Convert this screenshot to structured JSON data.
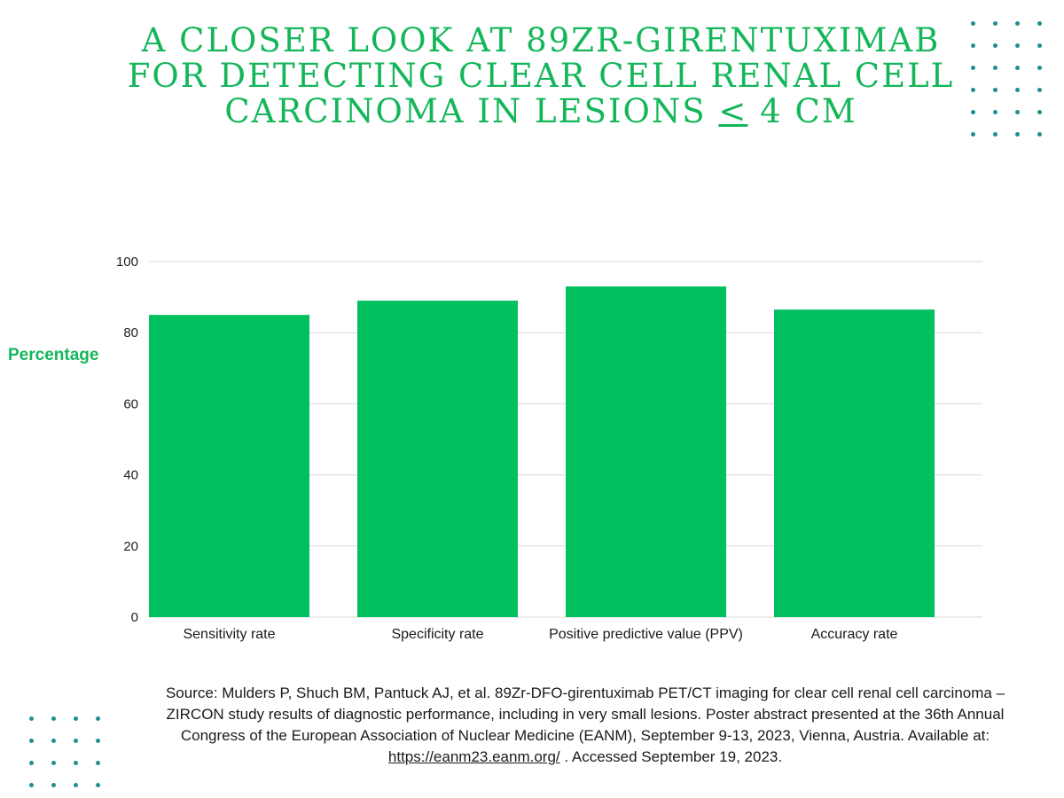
{
  "header": {
    "title_main": "A closer look at 89Zr-girentuximab for detecting clear cell renal cell carcinoma in lesions",
    "title_symbol": "<",
    "title_tail": "4 cm"
  },
  "colors": {
    "bar": "#00c060",
    "title": "#14b65a",
    "dots": "#1f8f8f",
    "grid": "#d9d9d9"
  },
  "chart_data": {
    "type": "bar",
    "categories": [
      "Sensitivity rate",
      "Specificity rate",
      "Positive predictive value (PPV)",
      "Accuracy rate"
    ],
    "values": [
      85,
      89,
      93,
      86.5
    ],
    "ylabel": "Percentage",
    "xlabel": "",
    "ylim": [
      0,
      100
    ],
    "yticks": [
      0,
      20,
      40,
      60,
      80,
      100
    ],
    "grid": true,
    "legend": "none"
  },
  "source": {
    "text_before": "Source: Mulders P, Shuch BM, Pantuck AJ, et al. 89Zr-DFO-girentuximab PET/CT imaging for clear cell renal cell carcinoma – ZIRCON study results of diagnostic performance, including in very small lesions. Poster abstract presented at the 36th Annual Congress of the European Association of Nuclear Medicine (EANM), September 9-13, 2023, Vienna, Austria. Available at: ",
    "link": "https://eanm23.eanm.org/",
    "text_after": " . Accessed September 19, 2023."
  }
}
